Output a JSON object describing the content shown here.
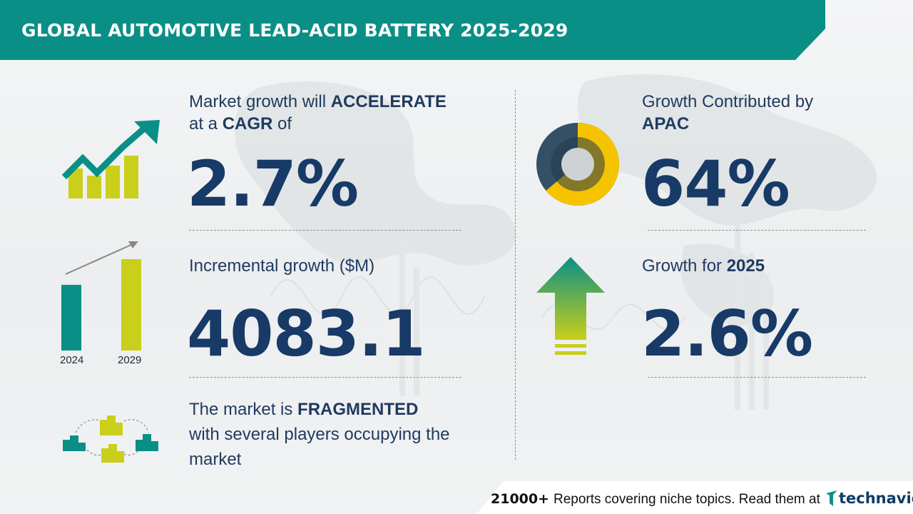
{
  "header": {
    "title": "GLOBAL AUTOMOTIVE LEAD-ACID BATTERY 2025-2029"
  },
  "cagr": {
    "line1_prefix": "Market growth will ",
    "line1_bold": "ACCELERATE",
    "line2_prefix": "at a ",
    "line2_bold": "CAGR",
    "line2_suffix": " of",
    "value": "2.7%"
  },
  "incremental": {
    "label": "Incremental growth ($M)",
    "value": "4083.1",
    "year_start": "2024",
    "year_end": "2029"
  },
  "fragmented": {
    "line1_prefix": "The market is ",
    "line1_bold": "FRAGMENTED",
    "line2": "with several players occupying the",
    "line3": "market"
  },
  "region": {
    "line1": "Growth Contributed by",
    "line2_bold": "APAC",
    "value": "64%",
    "share": 0.64
  },
  "yoy": {
    "label_prefix": "Growth for ",
    "label_bold": "2025",
    "value": "2.6%"
  },
  "footer": {
    "count": "21000+",
    "text": "Reports covering niche topics. Read them at",
    "logo_text": "technavio"
  },
  "colors": {
    "teal": "#0a8f86",
    "navy": "#173a67",
    "lime": "#c9cf1a",
    "yellow": "#f5c400",
    "slate": "#345066"
  },
  "icons": [
    "growth-chart-icon",
    "bar-comparison-icon",
    "buildings-network-icon",
    "donut-chart-icon",
    "up-arrow-icon",
    "technavio-logo-icon"
  ]
}
